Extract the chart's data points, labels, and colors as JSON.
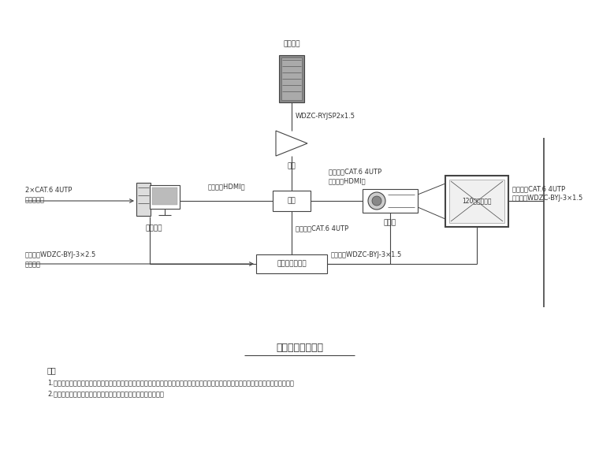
{
  "title": "多媒体教室系统图",
  "bg_color": "#ffffff",
  "line_color": "#444444",
  "text_color": "#333333",
  "notes_title": "说明",
  "note1": "1.室内多媒体设备（投影仪、投影幕布、中控讲台）均仅按照情报教室的功能进行设计，业主应根据后期具体使用情况对设备选型进行调整。",
  "note2": "2.对于投影效果要求较高的房间，可参考常规参数按需提高参数。",
  "label_speaker": "教室音算",
  "label_amp": "功放",
  "label_computer": "教学电脑",
  "label_zhongkong": "中控",
  "label_projector": "投影仪",
  "label_screen": "120寸投影幕布",
  "label_power_ctrl": "电源时序控制器",
  "label_network1": "2×CAT.6 4UTP",
  "label_network2": "接入校园网",
  "label_power_in1": "电源线：WDZC-BYJ-3×2.5",
  "label_power_in2": "接配电箱",
  "label_hdmi1": "视频线：HDMI线",
  "label_amp_wire": "WDZC-RYJSP2x1.5",
  "label_ctrl_video1": "控制线：CAT.6 4UTP",
  "label_ctrl_video2": "视频线：HDMI线",
  "label_ctrl_below": "控制线：CAT.6 4UTP",
  "label_pw_below": "电源线：WDZC-BYJ-3×1.5",
  "label_screen_ctrl": "控制线：CAT.6 4UTP",
  "label_screen_pw": "电源线：WDZC-BYJ-3×1.5"
}
